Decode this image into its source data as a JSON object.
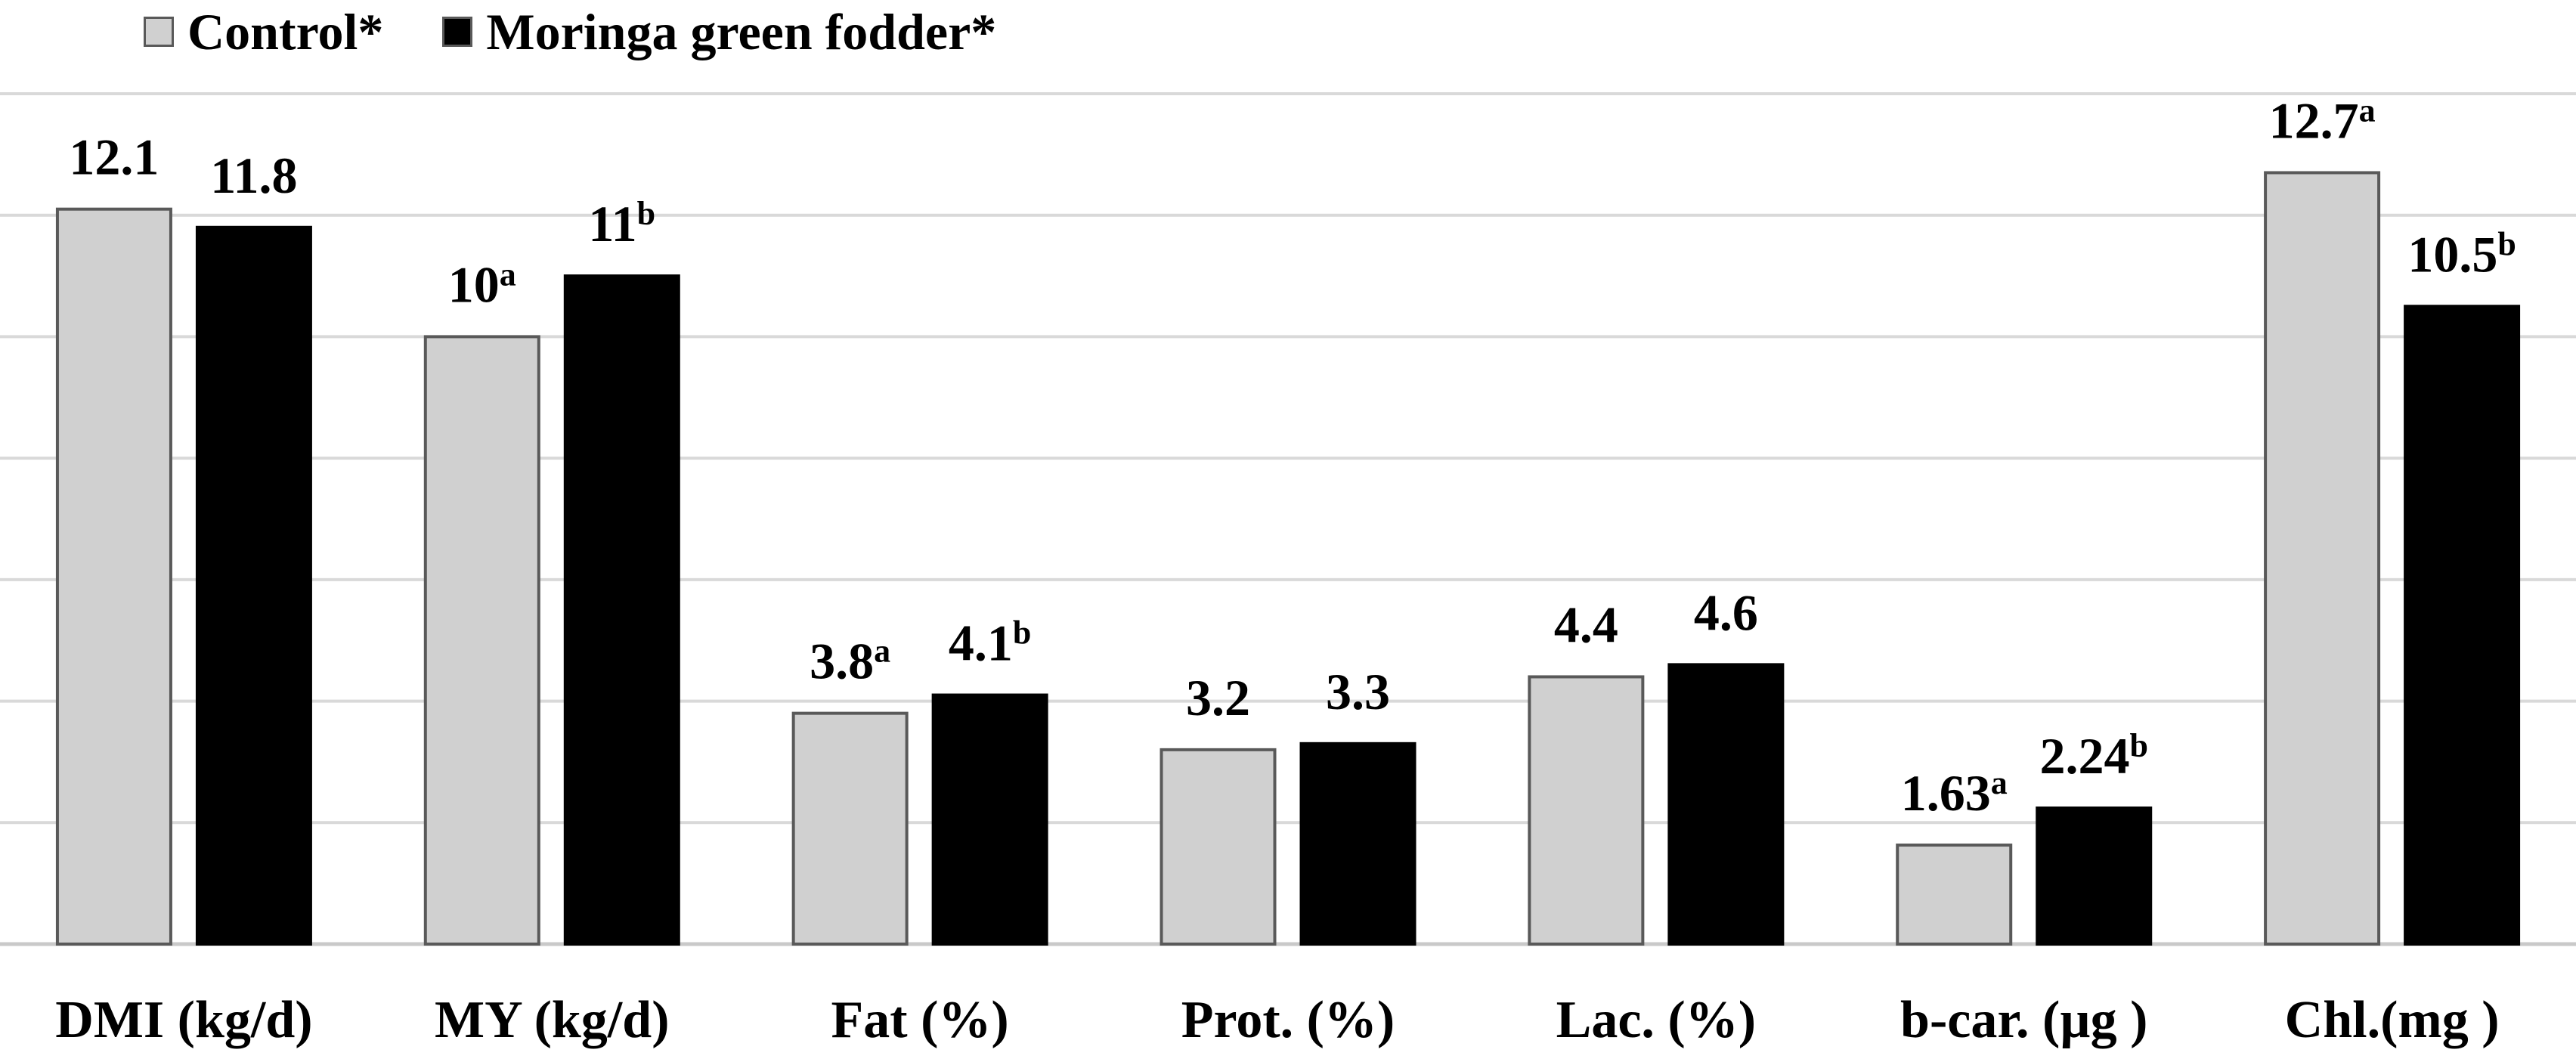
{
  "chart_data": {
    "type": "bar",
    "categories": [
      "DMI (kg/d)",
      "MY (kg/d)",
      "Fat (%)",
      "Prot. (%)",
      "Lac. (%)",
      "b-car. (µg )",
      "Chl.(mg )"
    ],
    "series": [
      {
        "name": "Control*",
        "color": "#d0d0d0",
        "values": [
          12.1,
          10,
          3.8,
          3.2,
          4.4,
          1.63,
          12.7
        ],
        "labels": [
          "12.1",
          "10",
          "3.8",
          "3.2",
          "4.4",
          "1.63",
          "12.7"
        ],
        "superscripts": [
          "",
          "a",
          "a",
          "",
          "",
          "a",
          "a"
        ],
        "scaled": [
          12.1,
          10,
          3.8,
          3.2,
          4.4,
          1.63,
          12.7
        ]
      },
      {
        "name": "Moringa green fodder*",
        "color": "#000000",
        "values": [
          11.8,
          11,
          4.1,
          3.3,
          4.6,
          2.24,
          10.5
        ],
        "labels": [
          "11.8",
          "11",
          "4.1",
          "3.3",
          "4.6",
          "2.24",
          "10.5"
        ],
        "superscripts": [
          "",
          "b",
          "b",
          "",
          "",
          "b",
          "b"
        ],
        "scaled": [
          11.8,
          11,
          4.1,
          3.3,
          4.6,
          2.24,
          10.5
        ]
      }
    ],
    "ylim": [
      0,
      14
    ],
    "grid": true,
    "legend": "top-left"
  }
}
